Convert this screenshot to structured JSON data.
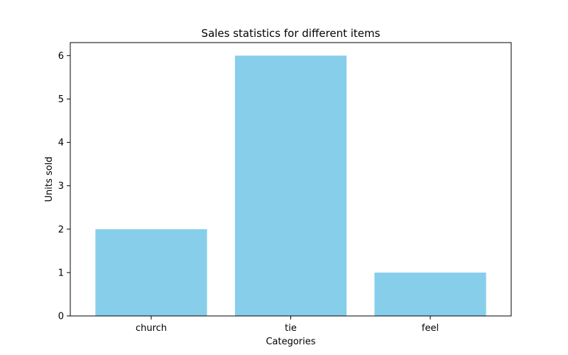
{
  "chart_data": {
    "type": "bar",
    "title": "Sales statistics for different items",
    "xlabel": "Categories",
    "ylabel": "Units sold",
    "categories": [
      "church",
      "tie",
      "feel"
    ],
    "values": [
      2,
      6,
      1
    ],
    "ylim": [
      0,
      6.3
    ],
    "yticks": [
      0,
      1,
      2,
      3,
      4,
      5,
      6
    ],
    "bar_color": "#87ceeb",
    "grid": false,
    "legend": "none"
  }
}
